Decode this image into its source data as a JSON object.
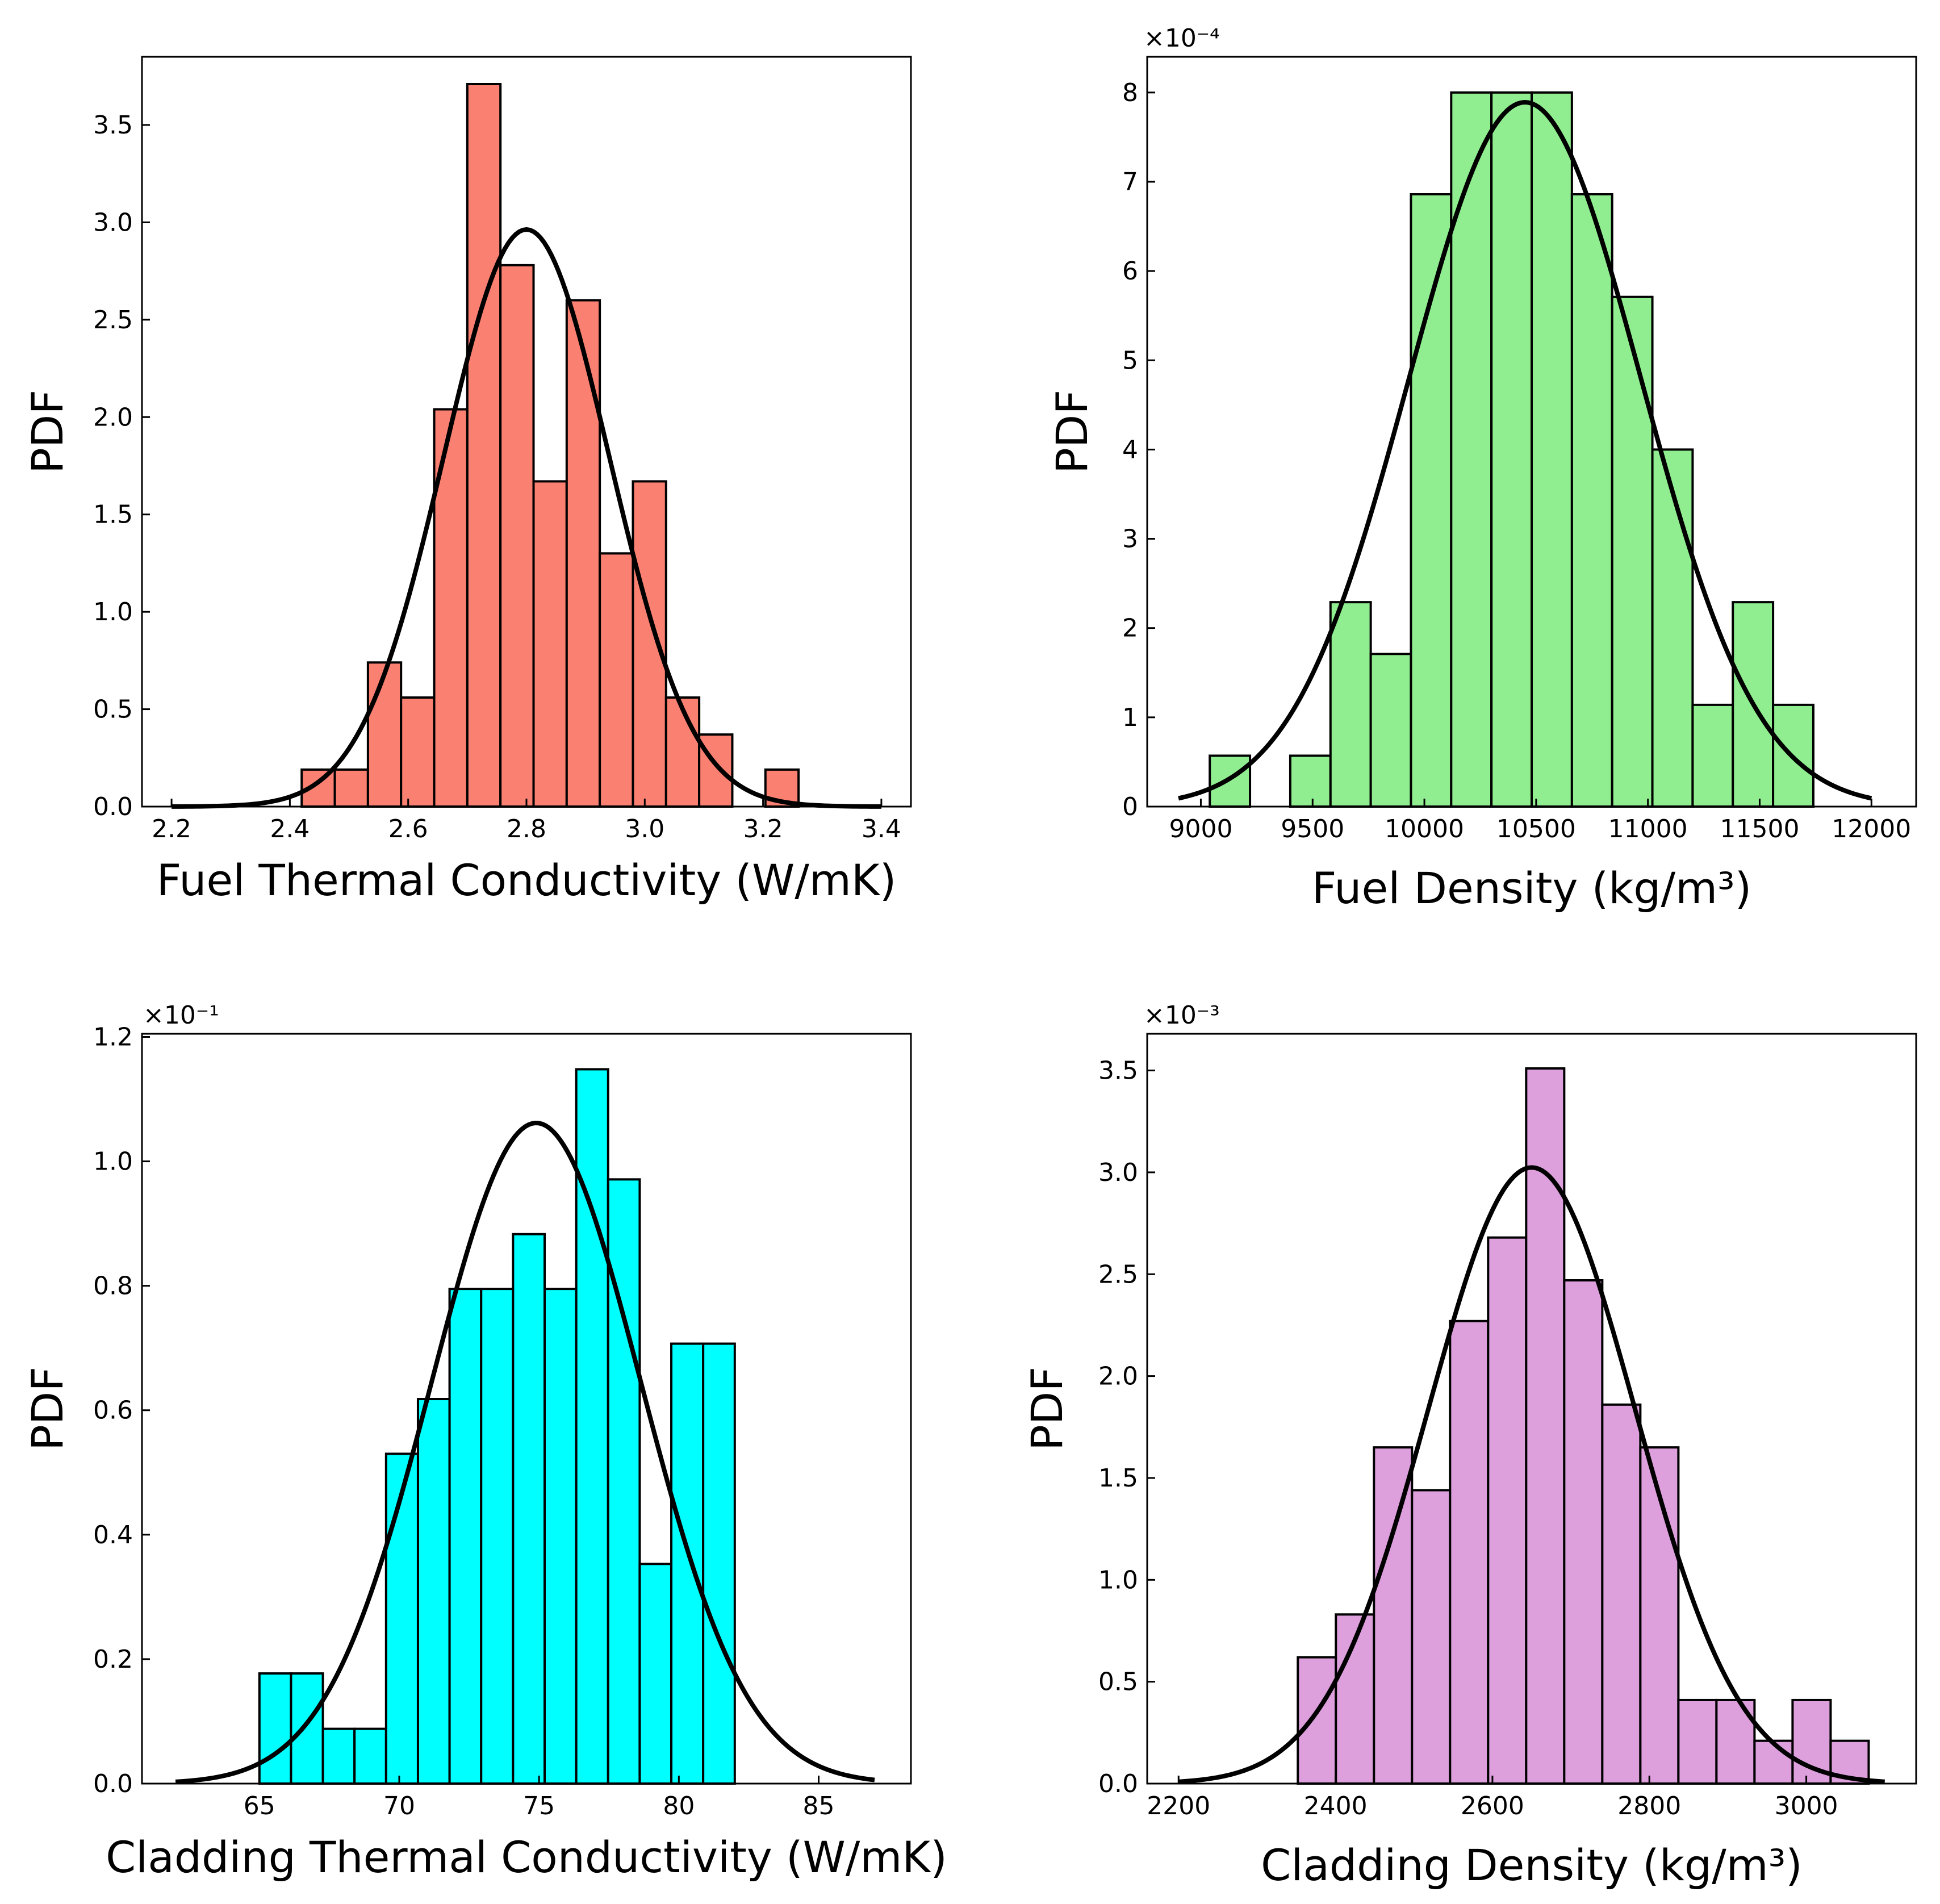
{
  "chart_data": [
    {
      "type": "bar",
      "title": "",
      "xlabel": "Fuel Thermal Conductivity (W/mK)",
      "ylabel": "PDF",
      "scale_label": "",
      "color": "#fa8072",
      "xlim": [
        2.15,
        3.45
      ],
      "ylim": [
        0,
        3.85
      ],
      "xticks": [
        2.2,
        2.4,
        2.6,
        2.8,
        3.0,
        3.2,
        3.4
      ],
      "xtick_labels": [
        "2.2",
        "2.4",
        "2.6",
        "2.8",
        "3.0",
        "3.2",
        "3.4"
      ],
      "yticks": [
        0.0,
        0.5,
        1.0,
        1.5,
        2.0,
        2.5,
        3.0,
        3.5
      ],
      "ytick_labels": [
        "0.0",
        "0.5",
        "1.0",
        "1.5",
        "2.0",
        "2.5",
        "3.0",
        "3.5"
      ],
      "bin_edges": [
        2.42,
        2.476,
        2.532,
        2.588,
        2.644,
        2.7,
        2.756,
        2.812,
        2.868,
        2.924,
        2.98,
        3.036,
        3.092,
        3.148,
        3.204,
        3.26
      ],
      "values": [
        0.19,
        0.19,
        0.74,
        0.56,
        2.04,
        3.71,
        2.78,
        1.67,
        2.6,
        1.3,
        1.67,
        0.56,
        0.37,
        0.0,
        0.19
      ],
      "fit": {
        "mean": 2.8,
        "std": 0.14,
        "x_range": [
          2.2,
          3.4
        ]
      }
    },
    {
      "type": "bar",
      "title": "",
      "xlabel": "Fuel Density (kg/m³)",
      "ylabel": "PDF",
      "scale_label": "×10⁻⁴",
      "color": "#90ee90",
      "xlim": [
        8760,
        12200
      ],
      "ylim": [
        0,
        8.4
      ],
      "xticks": [
        9000,
        9500,
        10000,
        10500,
        11000,
        11500,
        12000
      ],
      "xtick_labels": [
        "9000",
        "9500",
        "10000",
        "10500",
        "11000",
        "11500",
        "12000"
      ],
      "yticks": [
        0,
        1,
        2,
        3,
        4,
        5,
        6,
        7,
        8
      ],
      "ytick_labels": [
        "0",
        "1",
        "2",
        "3",
        "4",
        "5",
        "6",
        "7",
        "8"
      ],
      "bin_edges": [
        9040,
        9220,
        9400,
        9580,
        9760,
        9940,
        10120,
        10300,
        10480,
        10660,
        10840,
        11020,
        11200,
        11380,
        11560,
        11740
      ],
      "values": [
        0.57,
        0.0,
        0.57,
        2.29,
        1.71,
        6.86,
        8.0,
        8.0,
        8.0,
        6.86,
        5.71,
        4.0,
        1.14,
        2.29,
        1.14
      ],
      "fit": {
        "mean": 10450,
        "std": 520,
        "x_range": [
          8900,
          12000
        ]
      }
    },
    {
      "type": "bar",
      "title": "",
      "xlabel": "Cladding Thermal Conductivity (W/mK)",
      "ylabel": "PDF",
      "scale_label": "×10⁻¹",
      "color": "#00ffff",
      "xlim": [
        60.8,
        88.3
      ],
      "ylim": [
        0,
        1.205
      ],
      "xticks": [
        65,
        70,
        75,
        80,
        85
      ],
      "xtick_labels": [
        "65",
        "70",
        "75",
        "80",
        "85"
      ],
      "yticks": [
        0.0,
        0.2,
        0.4,
        0.6,
        0.8,
        1.0,
        1.2
      ],
      "ytick_labels": [
        "0.0",
        "0.2",
        "0.4",
        "0.6",
        "0.8",
        "1.0",
        "1.2"
      ],
      "bin_edges": [
        65.0,
        66.13,
        67.27,
        68.4,
        69.53,
        70.67,
        71.8,
        72.93,
        74.07,
        75.2,
        76.33,
        77.47,
        78.6,
        79.73,
        80.87,
        82.0
      ],
      "values": [
        0.177,
        0.177,
        0.088,
        0.088,
        0.53,
        0.618,
        0.795,
        0.795,
        0.883,
        0.795,
        1.148,
        0.971,
        0.353,
        0.707,
        0.707
      ],
      "fit": {
        "mean": 74.9,
        "std": 3.75,
        "x_range": [
          62,
          87
        ]
      }
    },
    {
      "type": "bar",
      "title": "",
      "xlabel": "Cladding Density (kg/m³)",
      "ylabel": "PDF",
      "scale_label": "×10⁻³",
      "color": "#dda0dd",
      "xlim": [
        2160,
        3140
      ],
      "ylim": [
        0,
        3.68
      ],
      "xticks": [
        2200,
        2400,
        2600,
        2800,
        3000
      ],
      "xtick_labels": [
        "2200",
        "2400",
        "2600",
        "2800",
        "3000"
      ],
      "yticks": [
        0.0,
        0.5,
        1.0,
        1.5,
        2.0,
        2.5,
        3.0,
        3.5
      ],
      "ytick_labels": [
        "0.0",
        "0.5",
        "1.0",
        "1.5",
        "2.0",
        "2.5",
        "3.0",
        "3.5"
      ],
      "bin_edges": [
        2352,
        2400.5,
        2449,
        2497.5,
        2546,
        2594.5,
        2643,
        2691.5,
        2740,
        2788.5,
        2837,
        2885.5,
        2934,
        2982.5,
        3031,
        3079.5
      ],
      "values": [
        0.62,
        0.83,
        1.65,
        1.44,
        2.27,
        2.68,
        3.51,
        2.47,
        1.86,
        1.65,
        0.41,
        0.41,
        0.21,
        0.41,
        0.21
      ],
      "fit": {
        "mean": 2650,
        "std": 132,
        "x_range": [
          2200,
          3100
        ]
      }
    }
  ]
}
